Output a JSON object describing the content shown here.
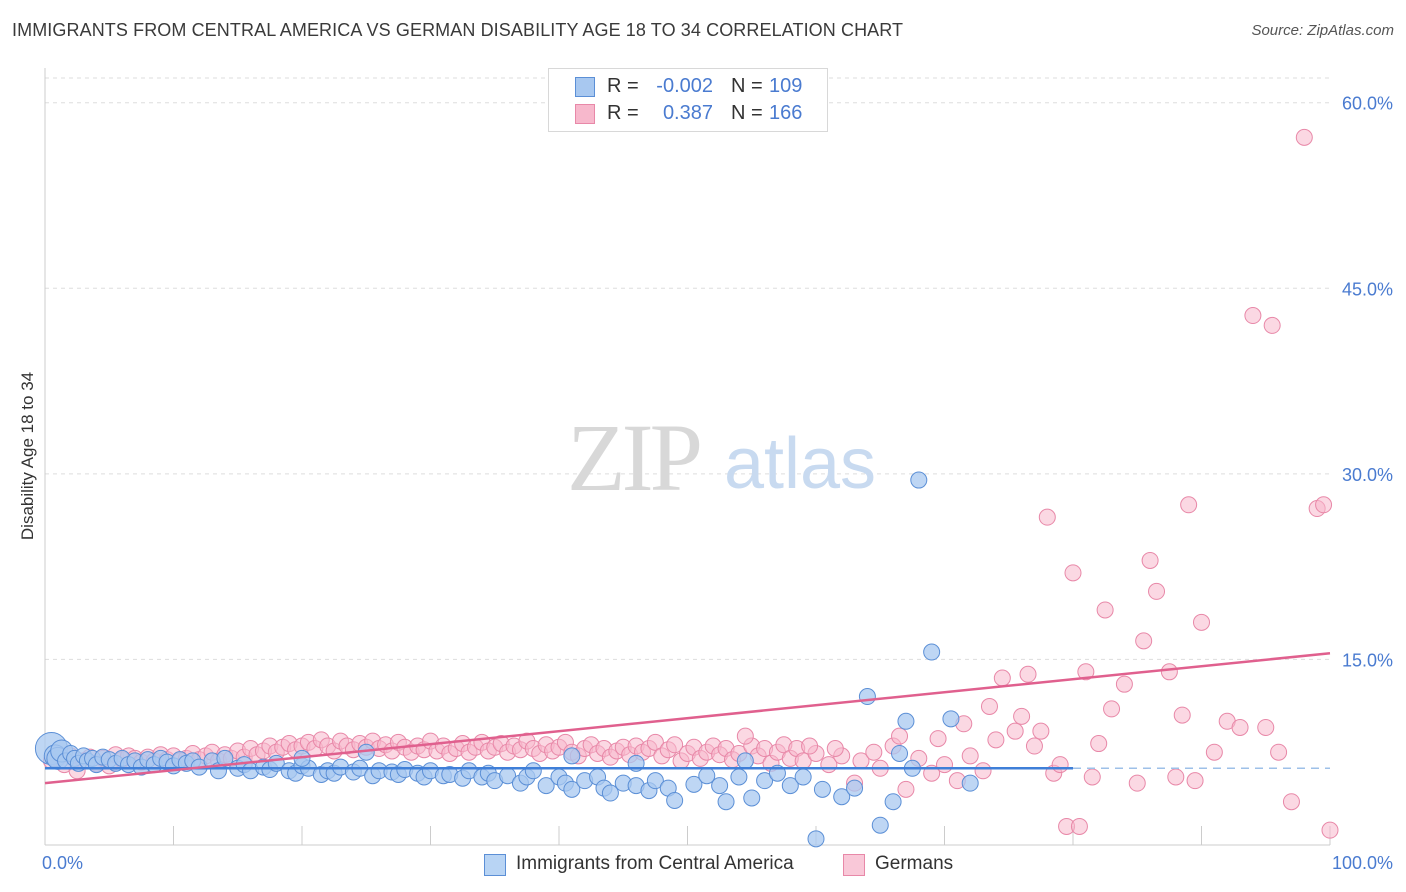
{
  "title": "IMMIGRANTS FROM CENTRAL AMERICA VS GERMAN DISABILITY AGE 18 TO 34 CORRELATION CHART",
  "source": "Source: ZipAtlas.com",
  "legend_top": {
    "rows": [
      {
        "r_label": "R =",
        "r_value": "-0.002",
        "n_label": "N =",
        "n_value": "109"
      },
      {
        "r_label": "R =",
        "r_value": "0.387",
        "n_label": "N =",
        "n_value": "166"
      }
    ]
  },
  "watermark": {
    "zip": "ZIP",
    "atlas": "atlas"
  },
  "colors": {
    "blue_fill": "#a8c8f0",
    "blue_stroke": "#5b8fd6",
    "blue_line": "#3f7fd8",
    "pink_fill": "#f7b8cc",
    "pink_stroke": "#e888a8",
    "pink_line": "#e0608e",
    "tick_text": "#4a7bd0",
    "grid": "#dddddd"
  },
  "chart_data": {
    "type": "scatter",
    "title": "IMMIGRANTS FROM CENTRAL AMERICA VS GERMAN DISABILITY AGE 18 TO 34 CORRELATION CHART",
    "xlabel": "",
    "ylabel": "Disability Age 18 to 34",
    "xlim": [
      0,
      100
    ],
    "ylim": [
      0,
      62
    ],
    "x_tick_labels": [
      "0.0%",
      "100.0%"
    ],
    "y_ticks": [
      15,
      30,
      45,
      60
    ],
    "y_tick_labels": [
      "15.0%",
      "30.0%",
      "45.0%",
      "60.0%"
    ],
    "grid": true,
    "legend_position": "bottom-center",
    "series": [
      {
        "name": "Immigrants from Central America",
        "color": "#a8c8f0",
        "trend": {
          "x": [
            0,
            80
          ],
          "y": [
            6.2,
            6.2
          ]
        },
        "points": [
          [
            0.5,
            7.8
          ],
          [
            0.8,
            7.2
          ],
          [
            1.0,
            7.0
          ],
          [
            1.3,
            7.6
          ],
          [
            1.6,
            6.8
          ],
          [
            2.0,
            7.4
          ],
          [
            2.3,
            7.0
          ],
          [
            2.6,
            6.6
          ],
          [
            3.0,
            7.2
          ],
          [
            3.3,
            6.8
          ],
          [
            3.7,
            7.0
          ],
          [
            4.0,
            6.5
          ],
          [
            4.5,
            7.1
          ],
          [
            5.0,
            6.9
          ],
          [
            5.5,
            6.6
          ],
          [
            6.0,
            7.0
          ],
          [
            6.5,
            6.5
          ],
          [
            7.0,
            6.8
          ],
          [
            7.5,
            6.3
          ],
          [
            8.0,
            6.9
          ],
          [
            8.5,
            6.5
          ],
          [
            9.0,
            7.0
          ],
          [
            9.5,
            6.7
          ],
          [
            10.0,
            6.4
          ],
          [
            10.5,
            6.9
          ],
          [
            11.0,
            6.6
          ],
          [
            11.5,
            6.8
          ],
          [
            12.0,
            6.3
          ],
          [
            13.0,
            6.8
          ],
          [
            13.5,
            6.0
          ],
          [
            14.0,
            7.0
          ],
          [
            15.0,
            6.2
          ],
          [
            15.5,
            6.5
          ],
          [
            16.0,
            6.0
          ],
          [
            17.0,
            6.3
          ],
          [
            17.5,
            6.1
          ],
          [
            18.0,
            6.6
          ],
          [
            19.0,
            6.0
          ],
          [
            19.5,
            5.8
          ],
          [
            20.0,
            6.4
          ],
          [
            20.5,
            6.2
          ],
          [
            21.5,
            5.7
          ],
          [
            22.0,
            6.0
          ],
          [
            22.5,
            5.8
          ],
          [
            23.0,
            6.3
          ],
          [
            24.0,
            5.9
          ],
          [
            24.5,
            6.2
          ],
          [
            25.5,
            5.6
          ],
          [
            26.0,
            6.0
          ],
          [
            27.0,
            5.9
          ],
          [
            27.5,
            5.7
          ],
          [
            28.0,
            6.1
          ],
          [
            29.0,
            5.8
          ],
          [
            29.5,
            5.5
          ],
          [
            30.0,
            6.0
          ],
          [
            31.0,
            5.6
          ],
          [
            31.5,
            5.7
          ],
          [
            32.5,
            5.4
          ],
          [
            33.0,
            6.0
          ],
          [
            34.0,
            5.5
          ],
          [
            34.5,
            5.8
          ],
          [
            35.0,
            5.2
          ],
          [
            36.0,
            5.6
          ],
          [
            37.0,
            5.0
          ],
          [
            37.5,
            5.5
          ],
          [
            38.0,
            6.0
          ],
          [
            39.0,
            4.8
          ],
          [
            40.0,
            5.5
          ],
          [
            40.5,
            5.0
          ],
          [
            41.0,
            4.5
          ],
          [
            42.0,
            5.2
          ],
          [
            43.0,
            5.5
          ],
          [
            43.5,
            4.6
          ],
          [
            44.0,
            4.2
          ],
          [
            45.0,
            5.0
          ],
          [
            46.0,
            4.8
          ],
          [
            47.0,
            4.4
          ],
          [
            47.5,
            5.2
          ],
          [
            48.5,
            4.6
          ],
          [
            49.0,
            3.6
          ],
          [
            50.5,
            4.9
          ],
          [
            51.5,
            5.6
          ],
          [
            52.5,
            4.8
          ],
          [
            53.0,
            3.5
          ],
          [
            54.0,
            5.5
          ],
          [
            55.0,
            3.8
          ],
          [
            56.0,
            5.2
          ],
          [
            57.0,
            5.8
          ],
          [
            58.0,
            4.8
          ],
          [
            59.0,
            5.5
          ],
          [
            60.0,
            0.5
          ],
          [
            60.5,
            4.5
          ],
          [
            62.0,
            3.9
          ],
          [
            63.0,
            4.6
          ],
          [
            64.0,
            12.0
          ],
          [
            65.0,
            1.6
          ],
          [
            66.0,
            3.5
          ],
          [
            67.0,
            10.0
          ],
          [
            68.0,
            29.5
          ],
          [
            69.0,
            15.6
          ],
          [
            70.5,
            10.2
          ],
          [
            72.0,
            5.0
          ],
          [
            66.5,
            7.4
          ],
          [
            67.5,
            6.2
          ],
          [
            20.0,
            7.0
          ],
          [
            25.0,
            7.5
          ],
          [
            41.0,
            7.2
          ],
          [
            46.0,
            6.6
          ],
          [
            54.5,
            6.8
          ]
        ],
        "sizes": {
          "0.5,7.8": "large"
        }
      },
      {
        "name": "Germans",
        "color": "#f7b8cc",
        "trend": {
          "x": [
            0,
            100
          ],
          "y": [
            5.0,
            15.5
          ]
        },
        "points": [
          [
            0.5,
            6.8
          ],
          [
            1.0,
            7.0
          ],
          [
            1.5,
            6.5
          ],
          [
            2.0,
            7.2
          ],
          [
            2.5,
            6.0
          ],
          [
            3.0,
            6.8
          ],
          [
            3.5,
            7.1
          ],
          [
            4.0,
            6.6
          ],
          [
            4.5,
            7.0
          ],
          [
            5.0,
            6.4
          ],
          [
            5.5,
            7.3
          ],
          [
            6.0,
            6.9
          ],
          [
            6.5,
            7.2
          ],
          [
            7.0,
            7.0
          ],
          [
            7.5,
            6.7
          ],
          [
            8.0,
            7.1
          ],
          [
            8.5,
            6.8
          ],
          [
            9.0,
            7.3
          ],
          [
            9.5,
            6.9
          ],
          [
            10.0,
            7.2
          ],
          [
            10.5,
            6.8
          ],
          [
            11.0,
            7.0
          ],
          [
            11.5,
            7.4
          ],
          [
            12.0,
            6.9
          ],
          [
            12.5,
            7.2
          ],
          [
            13.0,
            7.5
          ],
          [
            13.5,
            6.8
          ],
          [
            14.0,
            7.3
          ],
          [
            14.5,
            7.0
          ],
          [
            15.0,
            7.6
          ],
          [
            15.5,
            7.1
          ],
          [
            16.0,
            7.8
          ],
          [
            16.5,
            7.3
          ],
          [
            17.0,
            7.6
          ],
          [
            17.5,
            8.0
          ],
          [
            18.0,
            7.5
          ],
          [
            18.5,
            7.9
          ],
          [
            19.0,
            8.2
          ],
          [
            19.5,
            7.7
          ],
          [
            20.0,
            8.0
          ],
          [
            20.5,
            8.3
          ],
          [
            21.0,
            7.8
          ],
          [
            21.5,
            8.5
          ],
          [
            22.0,
            8.0
          ],
          [
            22.5,
            7.6
          ],
          [
            23.0,
            8.4
          ],
          [
            23.5,
            8.0
          ],
          [
            24.0,
            7.7
          ],
          [
            24.5,
            8.2
          ],
          [
            25.0,
            7.9
          ],
          [
            25.5,
            8.4
          ],
          [
            26.0,
            7.8
          ],
          [
            26.5,
            8.1
          ],
          [
            27.0,
            7.6
          ],
          [
            27.5,
            8.3
          ],
          [
            28.0,
            7.9
          ],
          [
            28.5,
            7.5
          ],
          [
            29.0,
            8.0
          ],
          [
            29.5,
            7.7
          ],
          [
            30.0,
            8.4
          ],
          [
            30.5,
            7.6
          ],
          [
            31.0,
            8.0
          ],
          [
            31.5,
            7.4
          ],
          [
            32.0,
            7.8
          ],
          [
            32.5,
            8.2
          ],
          [
            33.0,
            7.5
          ],
          [
            33.5,
            7.9
          ],
          [
            34.0,
            8.3
          ],
          [
            34.5,
            7.6
          ],
          [
            35.0,
            7.9
          ],
          [
            35.5,
            8.2
          ],
          [
            36.0,
            7.5
          ],
          [
            36.5,
            8.0
          ],
          [
            37.0,
            7.7
          ],
          [
            37.5,
            8.4
          ],
          [
            38.0,
            7.8
          ],
          [
            38.5,
            7.4
          ],
          [
            39.0,
            8.1
          ],
          [
            39.5,
            7.6
          ],
          [
            40.0,
            7.9
          ],
          [
            40.5,
            8.3
          ],
          [
            41.0,
            7.5
          ],
          [
            41.5,
            7.2
          ],
          [
            42.0,
            7.8
          ],
          [
            42.5,
            8.1
          ],
          [
            43.0,
            7.4
          ],
          [
            43.5,
            7.8
          ],
          [
            44.0,
            7.1
          ],
          [
            44.5,
            7.6
          ],
          [
            45.0,
            7.9
          ],
          [
            45.5,
            7.3
          ],
          [
            46.0,
            8.0
          ],
          [
            46.5,
            7.5
          ],
          [
            47.0,
            7.8
          ],
          [
            47.5,
            8.3
          ],
          [
            48.0,
            7.2
          ],
          [
            48.5,
            7.7
          ],
          [
            49.0,
            8.1
          ],
          [
            49.5,
            6.8
          ],
          [
            50.0,
            7.4
          ],
          [
            50.5,
            7.9
          ],
          [
            51.0,
            7.0
          ],
          [
            51.5,
            7.5
          ],
          [
            52.0,
            8.0
          ],
          [
            52.5,
            7.3
          ],
          [
            53.0,
            7.8
          ],
          [
            53.5,
            6.9
          ],
          [
            54.0,
            7.4
          ],
          [
            55.0,
            8.0
          ],
          [
            55.5,
            7.2
          ],
          [
            56.0,
            7.8
          ],
          [
            56.5,
            6.6
          ],
          [
            57.0,
            7.5
          ],
          [
            57.5,
            8.1
          ],
          [
            58.0,
            7.0
          ],
          [
            58.5,
            7.8
          ],
          [
            59.0,
            6.8
          ],
          [
            60.0,
            7.4
          ],
          [
            61.0,
            6.5
          ],
          [
            62.0,
            7.2
          ],
          [
            63.0,
            5.0
          ],
          [
            63.5,
            6.8
          ],
          [
            64.5,
            7.5
          ],
          [
            65.0,
            6.2
          ],
          [
            66.0,
            8.0
          ],
          [
            67.0,
            4.5
          ],
          [
            68.0,
            7.0
          ],
          [
            69.0,
            5.8
          ],
          [
            70.0,
            6.5
          ],
          [
            71.0,
            5.2
          ],
          [
            72.0,
            7.2
          ],
          [
            73.0,
            6.0
          ],
          [
            74.0,
            8.5
          ],
          [
            74.5,
            13.5
          ],
          [
            75.5,
            9.2
          ],
          [
            76.0,
            10.4
          ],
          [
            77.0,
            8.0
          ],
          [
            78.0,
            26.5
          ],
          [
            78.5,
            5.8
          ],
          [
            79.0,
            6.5
          ],
          [
            80.0,
            22.0
          ],
          [
            81.0,
            14.0
          ],
          [
            82.0,
            8.2
          ],
          [
            82.5,
            19.0
          ],
          [
            83.0,
            11.0
          ],
          [
            84.0,
            13.0
          ],
          [
            85.0,
            5.0
          ],
          [
            85.5,
            16.5
          ],
          [
            86.0,
            23.0
          ],
          [
            86.5,
            20.5
          ],
          [
            87.5,
            14.0
          ],
          [
            88.0,
            5.5
          ],
          [
            89.0,
            27.5
          ],
          [
            89.5,
            5.2
          ],
          [
            90.0,
            18.0
          ],
          [
            91.0,
            7.5
          ],
          [
            92.0,
            10.0
          ],
          [
            93.0,
            9.5
          ],
          [
            94.0,
            42.8
          ],
          [
            95.0,
            9.5
          ],
          [
            95.5,
            42.0
          ],
          [
            96.0,
            7.5
          ],
          [
            97.0,
            3.5
          ],
          [
            98.0,
            57.2
          ],
          [
            99.0,
            27.2
          ],
          [
            99.5,
            27.5
          ],
          [
            100.0,
            1.2
          ],
          [
            71.5,
            9.8
          ],
          [
            73.5,
            11.2
          ],
          [
            76.5,
            13.8
          ],
          [
            77.5,
            9.2
          ],
          [
            79.5,
            1.5
          ],
          [
            80.5,
            1.5
          ],
          [
            81.5,
            5.5
          ],
          [
            88.5,
            10.5
          ],
          [
            66.5,
            8.8
          ],
          [
            69.5,
            8.6
          ],
          [
            61.5,
            7.8
          ],
          [
            59.5,
            8.0
          ],
          [
            54.5,
            8.8
          ]
        ]
      }
    ]
  },
  "legend_bottom": {
    "items": [
      {
        "label": "Immigrants from Central America"
      },
      {
        "label": "Germans"
      }
    ]
  }
}
